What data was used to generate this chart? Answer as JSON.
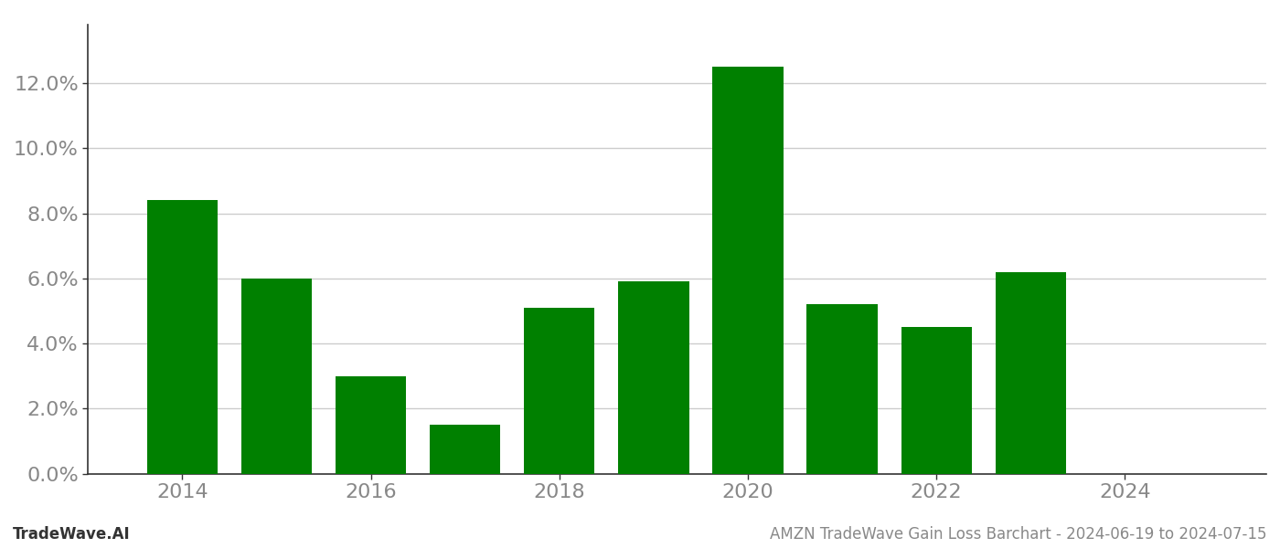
{
  "years": [
    2014,
    2015,
    2016,
    2017,
    2018,
    2019,
    2020,
    2021,
    2022,
    2023
  ],
  "values": [
    0.084,
    0.06,
    0.03,
    0.015,
    0.051,
    0.059,
    0.125,
    0.052,
    0.045,
    0.062
  ],
  "bar_color": "#008000",
  "background_color": "#ffffff",
  "grid_color": "#cccccc",
  "tick_label_color": "#888888",
  "xlim": [
    2013.0,
    2025.5
  ],
  "ylim": [
    0.0,
    0.138
  ],
  "yticks": [
    0.0,
    0.02,
    0.04,
    0.06,
    0.08,
    0.1,
    0.12
  ],
  "xticks": [
    2014,
    2016,
    2018,
    2020,
    2022,
    2024
  ],
  "footer_left": "TradeWave.AI",
  "footer_right": "AMZN TradeWave Gain Loss Barchart - 2024-06-19 to 2024-07-15",
  "bar_width": 0.75,
  "tick_fontsize": 16,
  "footer_fontsize": 12
}
